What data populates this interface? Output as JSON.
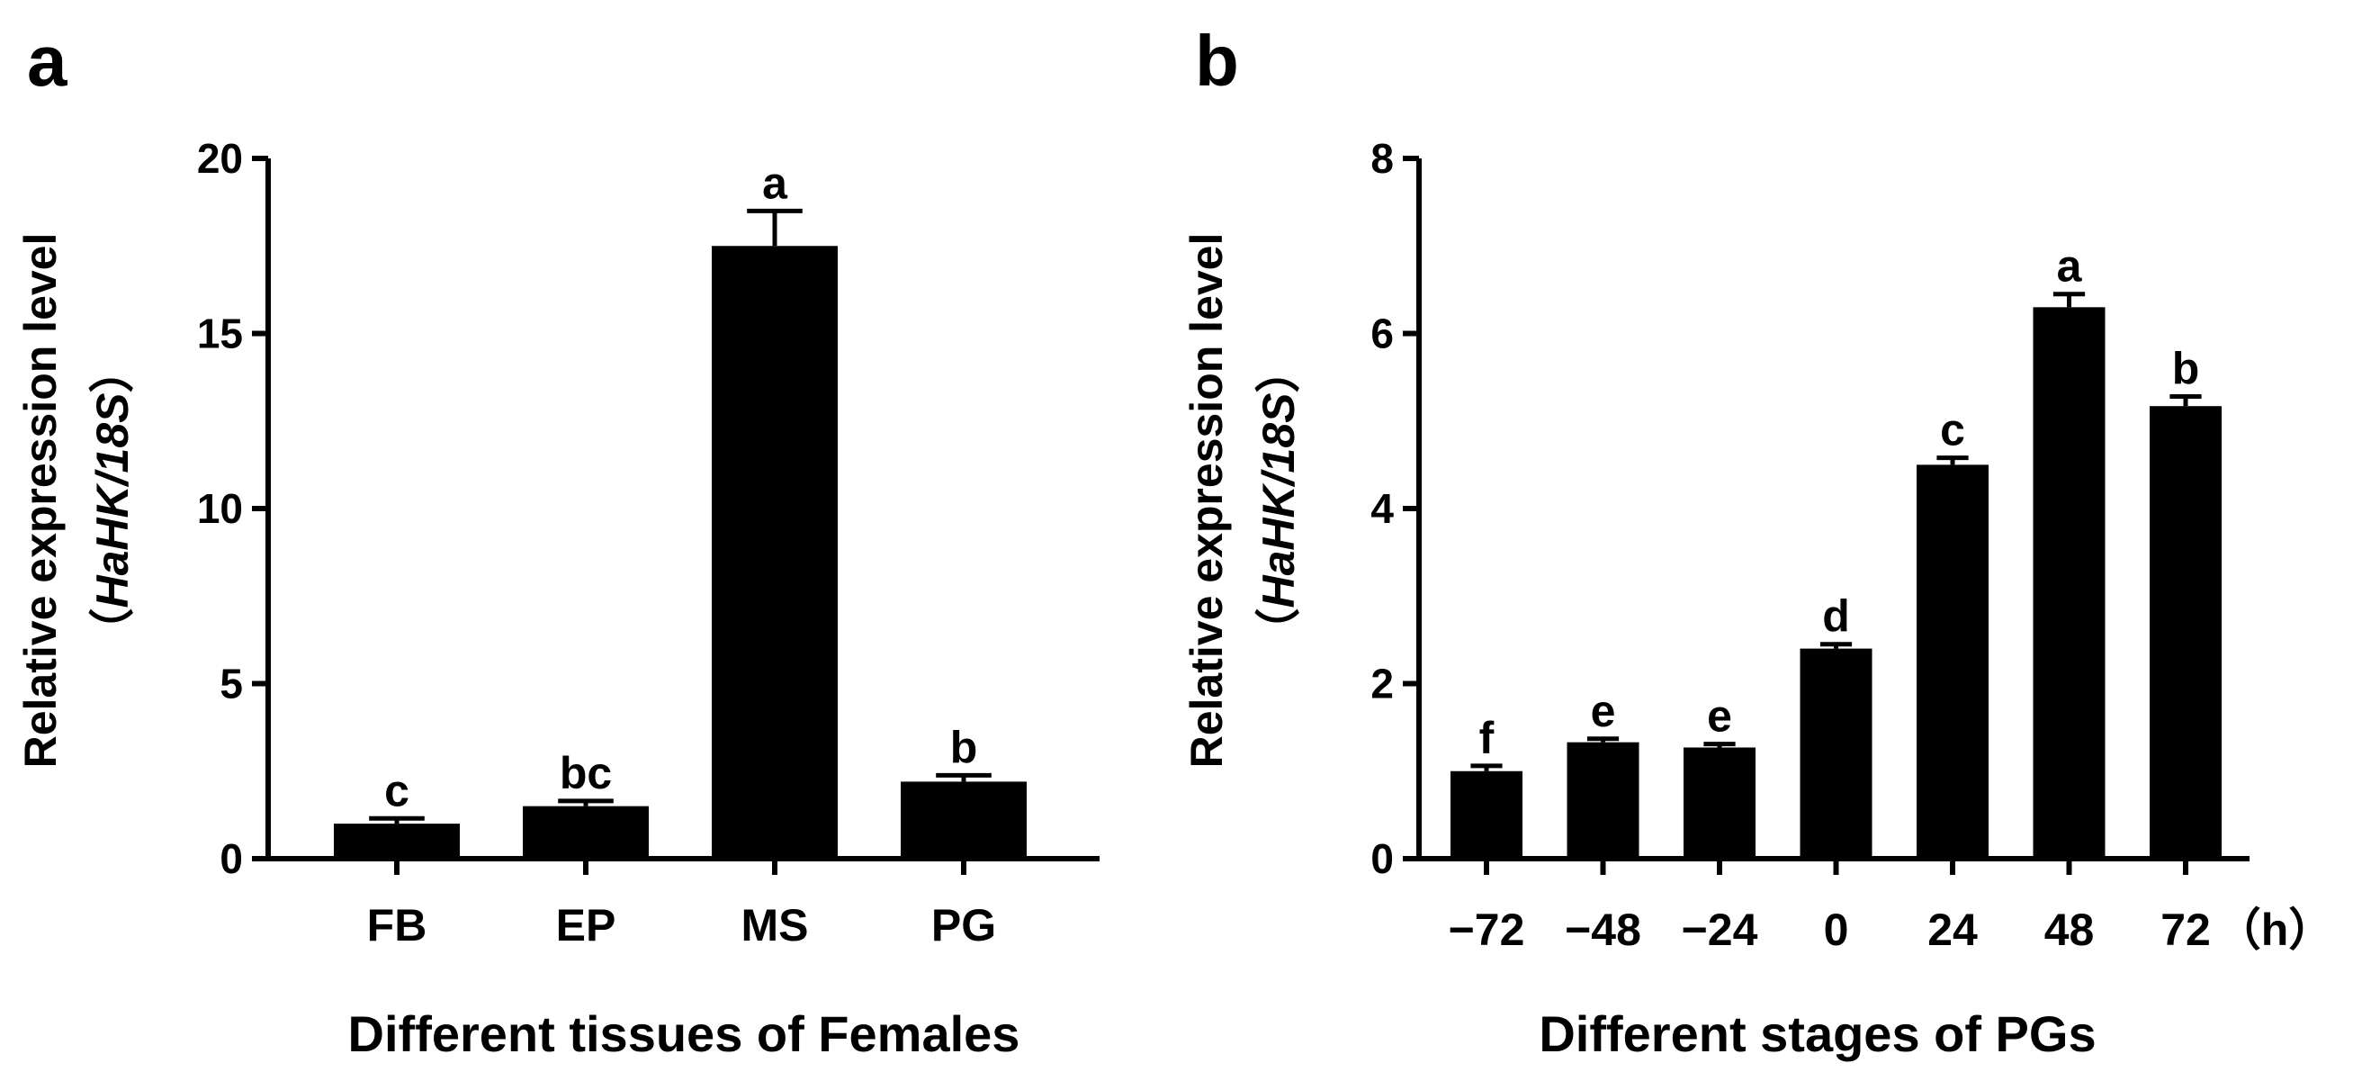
{
  "figure": {
    "panels": [
      {
        "letter": "a"
      },
      {
        "letter": "b"
      }
    ]
  },
  "chart_data": [
    {
      "type": "bar",
      "panel": "a",
      "categories": [
        "FB",
        "EP",
        "MS",
        "PG"
      ],
      "values": [
        1.0,
        1.5,
        17.5,
        2.2
      ],
      "errors": [
        0.15,
        0.15,
        1.0,
        0.18
      ],
      "significance": [
        "c",
        "bc",
        "a",
        "b"
      ],
      "ylabel": "Relative expression level",
      "ylabel2_prefix": "（",
      "ylabel2_italic": "HaHK/18S",
      "ylabel2_suffix": "）",
      "xlabel": "Different tissues of Females",
      "xunit": "",
      "ylim": [
        0,
        20
      ],
      "yticks": [
        0,
        5,
        10,
        15,
        20
      ],
      "ytick_labels": [
        "0",
        "5",
        "10",
        "15",
        "20"
      ]
    },
    {
      "type": "bar",
      "panel": "b",
      "categories": [
        "−72",
        "−48",
        "−24",
        "0",
        "24",
        "48",
        "72"
      ],
      "values": [
        1.0,
        1.33,
        1.27,
        2.4,
        4.5,
        6.3,
        5.17
      ],
      "errors": [
        0.06,
        0.04,
        0.04,
        0.05,
        0.08,
        0.15,
        0.11
      ],
      "significance": [
        "f",
        "e",
        "e",
        "d",
        "c",
        "a",
        "b"
      ],
      "ylabel": "Relative expression level",
      "ylabel2_prefix": "（",
      "ylabel2_italic": "HaHK/18S",
      "ylabel2_suffix": "）",
      "xlabel": "Different stages of PGs",
      "xunit": "（h）",
      "ylim": [
        0,
        8
      ],
      "yticks": [
        0,
        2,
        4,
        6,
        8
      ],
      "ytick_labels": [
        "0",
        "2",
        "4",
        "6",
        "8"
      ]
    }
  ]
}
